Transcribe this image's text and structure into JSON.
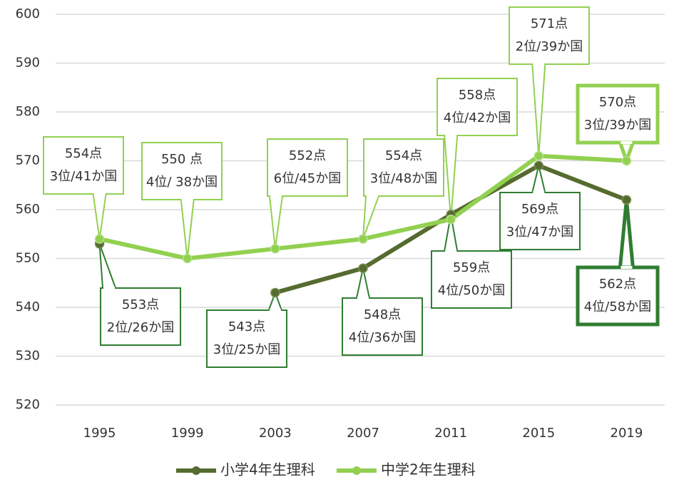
{
  "chart_data": {
    "type": "line",
    "categories": [
      "1995",
      "1999",
      "2003",
      "2007",
      "2011",
      "2015",
      "2019"
    ],
    "series": [
      {
        "name": "小学4年生理科",
        "color": "#556b2f",
        "values": [
          553,
          null,
          543,
          548,
          559,
          569,
          562
        ],
        "value_labels": [
          "553点",
          null,
          "543点",
          "548点",
          "559点",
          "569点",
          "562点"
        ],
        "ranks": [
          "2位/26か国",
          null,
          "3位/25か国",
          "4位/36か国",
          "4位/50か国",
          "3位/47か国",
          "4位/58か国"
        ]
      },
      {
        "name": "中学2年生理科",
        "color": "#92d050",
        "values": [
          554,
          550,
          552,
          554,
          558,
          571,
          570
        ],
        "value_labels": [
          "554点",
          "550 点",
          "552点",
          "554点",
          "558点",
          "571点",
          "570点"
        ],
        "ranks": [
          "3位/41か国",
          "4位/ 38か国",
          "6位/45か国",
          "3位/48か国",
          "4位/42か国",
          "2位/39か国",
          "3位/39か国"
        ]
      }
    ],
    "ylim": [
      520,
      600
    ],
    "yticks": [
      520,
      530,
      540,
      550,
      560,
      570,
      580,
      590,
      600
    ],
    "grid": true,
    "legend": "bottom"
  }
}
